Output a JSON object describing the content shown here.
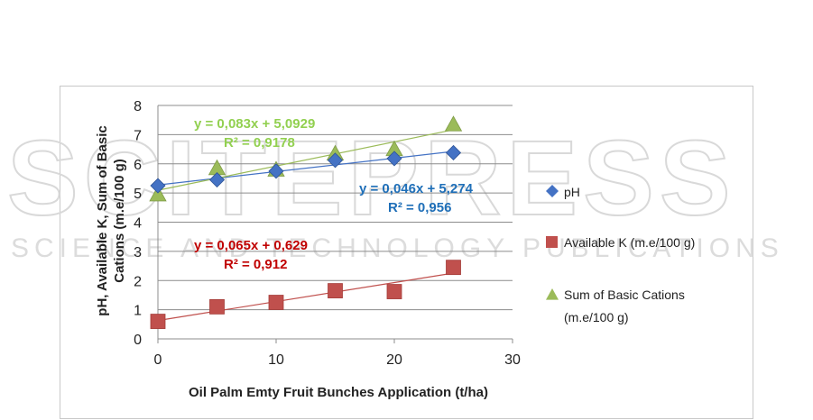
{
  "watermark": {
    "main": "SCITEPRESS",
    "sub": "SCIENCE AND TECHNOLOGY PUBLICATIONS"
  },
  "chart_data": {
    "type": "scatter",
    "xlabel": "Oil Palm Emty Fruit Bunches Application (t/ha)",
    "ylabel_lines": [
      "pH, Available K, Sum of Basic",
      "Cations (m.e/100 g)"
    ],
    "xlim": [
      0,
      30
    ],
    "ylim": [
      0,
      8
    ],
    "x_ticks": [
      "0",
      "10",
      "20",
      "30"
    ],
    "y_ticks": [
      "0",
      "1",
      "2",
      "3",
      "4",
      "5",
      "6",
      "7",
      "8"
    ],
    "grid": "horizontal",
    "legend_position": "right",
    "series": [
      {
        "name": "pH",
        "marker": "diamond",
        "color": "#4472c4",
        "x": [
          0,
          5,
          10,
          15,
          20,
          25
        ],
        "y": [
          5.25,
          5.45,
          5.75,
          6.12,
          6.18,
          6.38
        ],
        "trendline": {
          "slope": 0.046,
          "intercept": 5.274
        },
        "equation": "y = 0,046x + 5,274",
        "r2": "R² = 0,956",
        "label_color": "#1f6fb8"
      },
      {
        "name": "Available K  (m.e/100 g)",
        "marker": "square",
        "color": "#c0504d",
        "x": [
          0,
          5,
          10,
          15,
          20,
          25
        ],
        "y": [
          0.6,
          1.1,
          1.25,
          1.65,
          1.62,
          2.45
        ],
        "trendline": {
          "slope": 0.065,
          "intercept": 0.629
        },
        "equation": "y = 0,065x + 0,629",
        "r2": "R² = 0,912",
        "label_color": "#c00000"
      },
      {
        "name_lines": [
          "Sum of Basic Cations",
          "(m.e/100 g)"
        ],
        "marker": "triangle",
        "color": "#9bbb59",
        "x": [
          0,
          5,
          10,
          15,
          20,
          25
        ],
        "y": [
          4.95,
          5.85,
          5.8,
          6.35,
          6.5,
          7.35
        ],
        "trendline": {
          "slope": 0.083,
          "intercept": 5.0929
        },
        "equation": "y = 0,083x + 5,0929",
        "r2": "R² = 0,9178",
        "label_color": "#92d050"
      }
    ]
  }
}
